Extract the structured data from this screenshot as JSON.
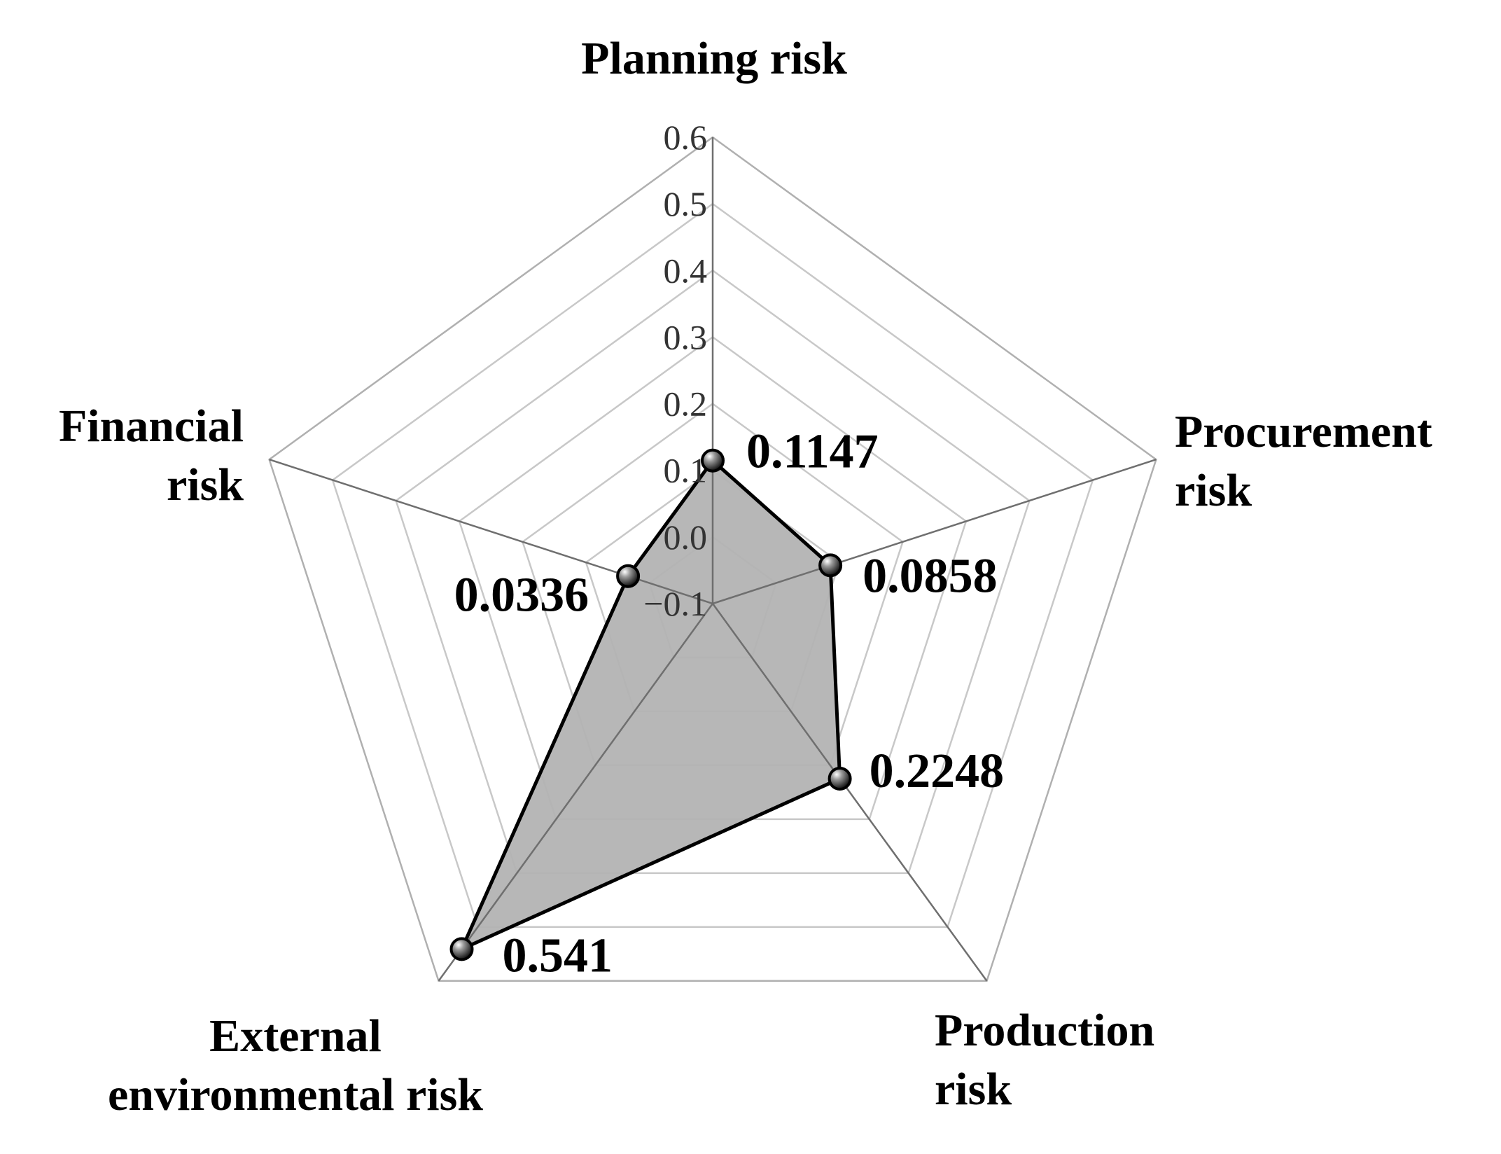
{
  "chart_data": {
    "type": "radar",
    "title": "",
    "categories": [
      [
        "Planning risk"
      ],
      [
        "Procurement",
        "risk"
      ],
      [
        "Production",
        "risk"
      ],
      [
        "External",
        "environmental risk"
      ],
      [
        "Financial",
        "risk"
      ]
    ],
    "series": [
      {
        "values": [
          0.1147,
          0.0858,
          0.2248,
          0.541,
          0.0336
        ],
        "value_labels": [
          "0.1147",
          "0.0858",
          "0.2248",
          "0.541",
          "0.0336"
        ],
        "fill_color": "#b3b3b3",
        "line_color": "#000000"
      }
    ],
    "radial_axis": {
      "range": [
        -0.1,
        0.6
      ],
      "ticks": [
        -0.1,
        0.0,
        0.1,
        0.2,
        0.3,
        0.4,
        0.5,
        0.6
      ],
      "tick_labels": [
        "−0.1",
        "0.0",
        "0.1",
        "0.2",
        "0.3",
        "0.4",
        "0.5",
        "0.6"
      ]
    },
    "grid": true,
    "legend": "none"
  }
}
